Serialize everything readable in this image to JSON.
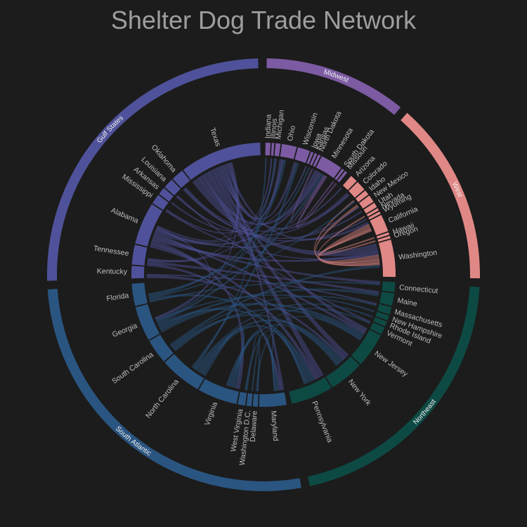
{
  "chart_data": {
    "type": "chord",
    "title": "Shelter Dog Trade Network",
    "regions": [
      {
        "name": "Midwest",
        "color": "#7c5ba3"
      },
      {
        "name": "West",
        "color": "#e08886"
      },
      {
        "name": "Northeast",
        "color": "#0e4a44"
      },
      {
        "name": "South Atlantic",
        "color": "#2a5580"
      },
      {
        "name": "Gulf States",
        "color": "#4f529a"
      }
    ],
    "nodes": [
      {
        "name": "Indiana",
        "region": "Midwest",
        "value": 2
      },
      {
        "name": "Illinois",
        "region": "Midwest",
        "value": 1
      },
      {
        "name": "Michigan",
        "region": "Midwest",
        "value": 2
      },
      {
        "name": "Ohio",
        "region": "Midwest",
        "value": 6
      },
      {
        "name": "Wisconsin",
        "region": "Midwest",
        "value": 5
      },
      {
        "name": "Iowa",
        "region": "Midwest",
        "value": 1
      },
      {
        "name": "Kansas",
        "region": "Midwest",
        "value": 1
      },
      {
        "name": "North Dakota",
        "region": "Midwest",
        "value": 1
      },
      {
        "name": "Minnesota",
        "region": "Midwest",
        "value": 9
      },
      {
        "name": "South Dakota",
        "region": "Midwest",
        "value": 1
      },
      {
        "name": "Missouri",
        "region": "Midwest",
        "value": 1
      },
      {
        "name": "Arizona",
        "region": "West",
        "value": 3
      },
      {
        "name": "Colorado",
        "region": "West",
        "value": 4
      },
      {
        "name": "Idaho",
        "region": "West",
        "value": 2
      },
      {
        "name": "New Mexico",
        "region": "West",
        "value": 3
      },
      {
        "name": "Utah",
        "region": "West",
        "value": 2
      },
      {
        "name": "Nevada",
        "region": "West",
        "value": 1
      },
      {
        "name": "Wyoming",
        "region": "West",
        "value": 1
      },
      {
        "name": "California",
        "region": "West",
        "value": 7
      },
      {
        "name": "Hawaii",
        "region": "West",
        "value": 1
      },
      {
        "name": "Oregon",
        "region": "West",
        "value": 1
      },
      {
        "name": "Washington",
        "region": "West",
        "value": 15
      },
      {
        "name": "Connecticut",
        "region": "Northeast",
        "value": 4
      },
      {
        "name": "Maine",
        "region": "Northeast",
        "value": 5
      },
      {
        "name": "Massachusetts",
        "region": "Northeast",
        "value": 3
      },
      {
        "name": "New Hampshire",
        "region": "Northeast",
        "value": 2
      },
      {
        "name": "Rhode Island",
        "region": "Northeast",
        "value": 2
      },
      {
        "name": "Vermont",
        "region": "Northeast",
        "value": 3
      },
      {
        "name": "New Jersey",
        "region": "Northeast",
        "value": 14
      },
      {
        "name": "New York",
        "region": "Northeast",
        "value": 14
      },
      {
        "name": "Pennsylvania",
        "region": "Northeast",
        "value": 17
      },
      {
        "name": "Maryland",
        "region": "South Atlantic",
        "value": 11
      },
      {
        "name": "Delaware",
        "region": "South Atlantic",
        "value": 2
      },
      {
        "name": "Washington D.C.",
        "region": "South Atlantic",
        "value": 2
      },
      {
        "name": "West Virginia",
        "region": "South Atlantic",
        "value": 3
      },
      {
        "name": "Virginia",
        "region": "South Atlantic",
        "value": 16
      },
      {
        "name": "North Carolina",
        "region": "South Atlantic",
        "value": 17
      },
      {
        "name": "South Carolina",
        "region": "South Atlantic",
        "value": 10
      },
      {
        "name": "Georgia",
        "region": "South Atlantic",
        "value": 14
      },
      {
        "name": "Florida",
        "region": "South Atlantic",
        "value": 9
      },
      {
        "name": "Kentucky",
        "region": "Gulf States",
        "value": 5
      },
      {
        "name": "Tennessee",
        "region": "Gulf States",
        "value": 8
      },
      {
        "name": "Alabama",
        "region": "Gulf States",
        "value": 17
      },
      {
        "name": "Mississippi",
        "region": "Gulf States",
        "value": 4
      },
      {
        "name": "Arkansas",
        "region": "Gulf States",
        "value": 3
      },
      {
        "name": "Louisiana",
        "region": "Gulf States",
        "value": 4
      },
      {
        "name": "Oklahoma",
        "region": "Gulf States",
        "value": 5
      },
      {
        "name": "Texas",
        "region": "Gulf States",
        "value": 33
      }
    ],
    "flows": [
      [
        "Texas",
        "Washington",
        6
      ],
      [
        "Texas",
        "Minnesota",
        4
      ],
      [
        "Texas",
        "Pennsylvania",
        5
      ],
      [
        "Texas",
        "New York",
        4
      ],
      [
        "Texas",
        "New Jersey",
        3
      ],
      [
        "Texas",
        "Colorado",
        2
      ],
      [
        "Texas",
        "Ohio",
        2
      ],
      [
        "Texas",
        "Wisconsin",
        2
      ],
      [
        "Texas",
        "Maryland",
        2
      ],
      [
        "Texas",
        "California",
        2
      ],
      [
        "Alabama",
        "Pennsylvania",
        3
      ],
      [
        "Alabama",
        "Virginia",
        3
      ],
      [
        "Alabama",
        "Washington",
        2
      ],
      [
        "Alabama",
        "Connecticut",
        2
      ],
      [
        "Alabama",
        "New Jersey",
        2
      ],
      [
        "Alabama",
        "Minnesota",
        2
      ],
      [
        "Tennessee",
        "Maryland",
        2
      ],
      [
        "Tennessee",
        "Maine",
        2
      ],
      [
        "Tennessee",
        "Ohio",
        1
      ],
      [
        "Kentucky",
        "New York",
        2
      ],
      [
        "Kentucky",
        "Massachusetts",
        1
      ],
      [
        "Mississippi",
        "Washington",
        1
      ],
      [
        "Mississippi",
        "Illinois",
        1
      ],
      [
        "Arkansas",
        "Iowa",
        1
      ],
      [
        "Louisiana",
        "Colorado",
        1
      ],
      [
        "Louisiana",
        "Vermont",
        1
      ],
      [
        "Oklahoma",
        "Utah",
        1
      ],
      [
        "Oklahoma",
        "Wyoming",
        1
      ],
      [
        "Oklahoma",
        "Arizona",
        1
      ],
      [
        "California",
        "Washington",
        4
      ],
      [
        "California",
        "Oregon",
        1
      ],
      [
        "New Mexico",
        "Washington",
        2
      ],
      [
        "Nevada",
        "Washington",
        1
      ],
      [
        "Idaho",
        "Washington",
        1
      ],
      [
        "Hawaii",
        "California",
        1
      ],
      [
        "Georgia",
        "New Jersey",
        3
      ],
      [
        "Georgia",
        "Maine",
        2
      ],
      [
        "Georgia",
        "Pennsylvania",
        2
      ],
      [
        "Georgia",
        "Minnesota",
        2
      ],
      [
        "Georgia",
        "Michigan",
        1
      ],
      [
        "Georgia",
        "New Hampshire",
        1
      ],
      [
        "North Carolina",
        "Virginia",
        3
      ],
      [
        "North Carolina",
        "Pennsylvania",
        3
      ],
      [
        "North Carolina",
        "New York",
        3
      ],
      [
        "North Carolina",
        "Rhode Island",
        1
      ],
      [
        "North Carolina",
        "Indiana",
        1
      ],
      [
        "North Carolina",
        "Wisconsin",
        2
      ],
      [
        "South Carolina",
        "New Jersey",
        2
      ],
      [
        "South Carolina",
        "New York",
        2
      ],
      [
        "South Carolina",
        "Massachusetts",
        1
      ],
      [
        "South Carolina",
        "Washington",
        2
      ],
      [
        "Florida",
        "Connecticut",
        1
      ],
      [
        "Florida",
        "Pennsylvania",
        2
      ],
      [
        "Florida",
        "Idaho",
        1
      ],
      [
        "Florida",
        "Ohio",
        2
      ],
      [
        "Florida",
        "Kansas",
        1
      ],
      [
        "Virginia",
        "Maryland",
        2
      ],
      [
        "Virginia",
        "New York",
        2
      ],
      [
        "West Virginia",
        "Delaware",
        1
      ],
      [
        "West Virginia",
        "Pennsylvania",
        1
      ],
      [
        "Washington D.C.",
        "Maryland",
        1
      ],
      [
        "Delaware",
        "New Jersey",
        1
      ],
      [
        "Maryland",
        "Pennsylvania",
        1
      ],
      [
        "Virginia",
        "Vermont",
        1
      ],
      [
        "Minnesota",
        "North Dakota",
        1
      ],
      [
        "Minnesota",
        "South Dakota",
        1
      ],
      [
        "Missouri",
        "Minnesota",
        1
      ],
      [
        "Alabama",
        "Michigan",
        1
      ],
      [
        "Alabama",
        "New Mexico",
        1
      ],
      [
        "Alabama",
        "Georgia",
        1
      ],
      [
        "Texas",
        "Georgia",
        1
      ],
      [
        "Texas",
        "Tennessee",
        1
      ],
      [
        "Texas",
        "Alabama",
        1
      ]
    ]
  }
}
